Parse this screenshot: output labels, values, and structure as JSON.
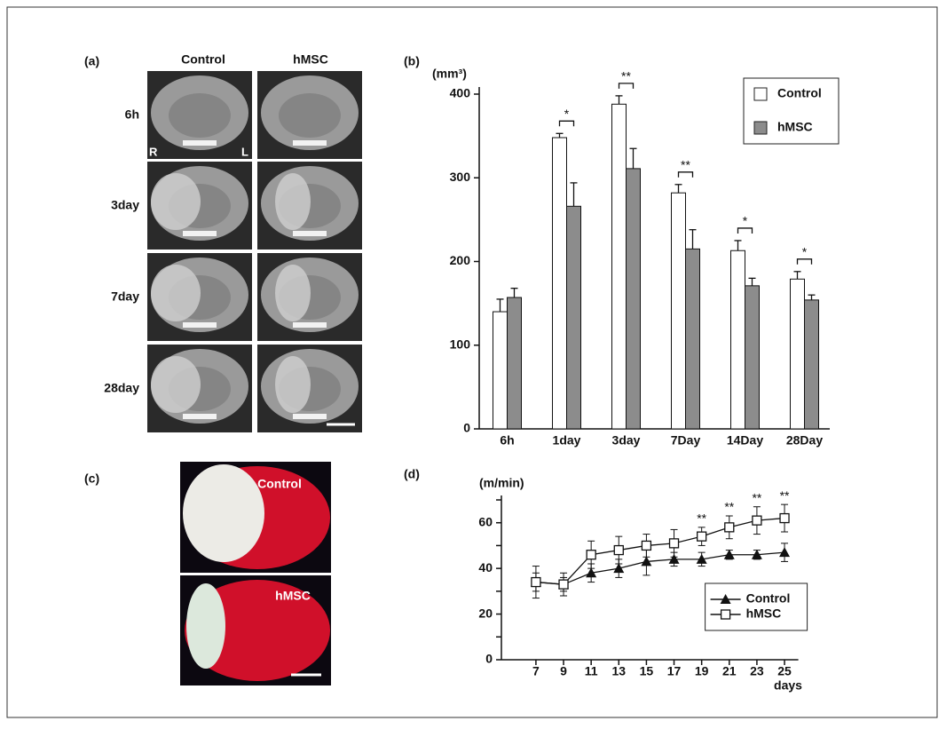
{
  "figure": {
    "panel_labels": [
      "(a)",
      "(b)",
      "(c)",
      "(d)"
    ],
    "mri": {
      "columns": [
        "Control",
        "hMSC"
      ],
      "rows": [
        "6h",
        "3day",
        "7day",
        "28day"
      ],
      "sides": [
        "R",
        "L"
      ]
    },
    "photo": {
      "labels": [
        "Control",
        "hMSC"
      ]
    }
  },
  "chart_data": [
    {
      "type": "bar",
      "y_label": "(mm³)",
      "categories": [
        "6h",
        "1day",
        "3day",
        "7Day",
        "14Day",
        "28Day"
      ],
      "series": [
        {
          "name": "Control",
          "color": "#ffffff",
          "values": [
            140,
            348,
            388,
            282,
            213,
            179
          ],
          "errors": [
            15,
            5,
            10,
            10,
            12,
            9
          ]
        },
        {
          "name": "hMSC",
          "color": "#8c8c8c",
          "values": [
            157,
            266,
            311,
            215,
            171,
            154
          ],
          "errors": [
            11,
            28,
            24,
            23,
            9,
            6
          ]
        }
      ],
      "significance": [
        null,
        "*",
        "**",
        "**",
        "*",
        "*"
      ],
      "ylim": [
        0,
        400
      ],
      "yticks": [
        0,
        100,
        200,
        300,
        400
      ],
      "legend": "upper right"
    },
    {
      "type": "line",
      "y_label": "(m/min)",
      "x_label": "days",
      "x": [
        7,
        9,
        11,
        13,
        15,
        17,
        19,
        21,
        23,
        25
      ],
      "series": [
        {
          "name": "Control",
          "color": "#111111",
          "marker": "triangle",
          "values": [
            34,
            33,
            38,
            40,
            43,
            44,
            44,
            46,
            46,
            47
          ],
          "errors": [
            7,
            5,
            4,
            4,
            6,
            3,
            3,
            2,
            2,
            4
          ]
        },
        {
          "name": "hMSC",
          "color": "#111111",
          "marker": "square",
          "values": [
            34,
            33,
            46,
            48,
            50,
            51,
            54,
            58,
            61,
            62
          ],
          "errors": [
            4,
            3,
            6,
            6,
            5,
            6,
            4,
            5,
            6,
            6
          ]
        }
      ],
      "significance": [
        null,
        null,
        null,
        null,
        null,
        null,
        "**",
        "**",
        "**",
        "**"
      ],
      "xlim": [
        4.5,
        26
      ],
      "xticks": [
        7,
        9,
        11,
        13,
        15,
        17,
        19,
        21,
        23,
        25
      ],
      "ylim": [
        0,
        70
      ],
      "yticks": [
        0,
        20,
        40,
        60
      ],
      "yminor": [
        10,
        30,
        50,
        70
      ],
      "legend": "lower right"
    }
  ]
}
